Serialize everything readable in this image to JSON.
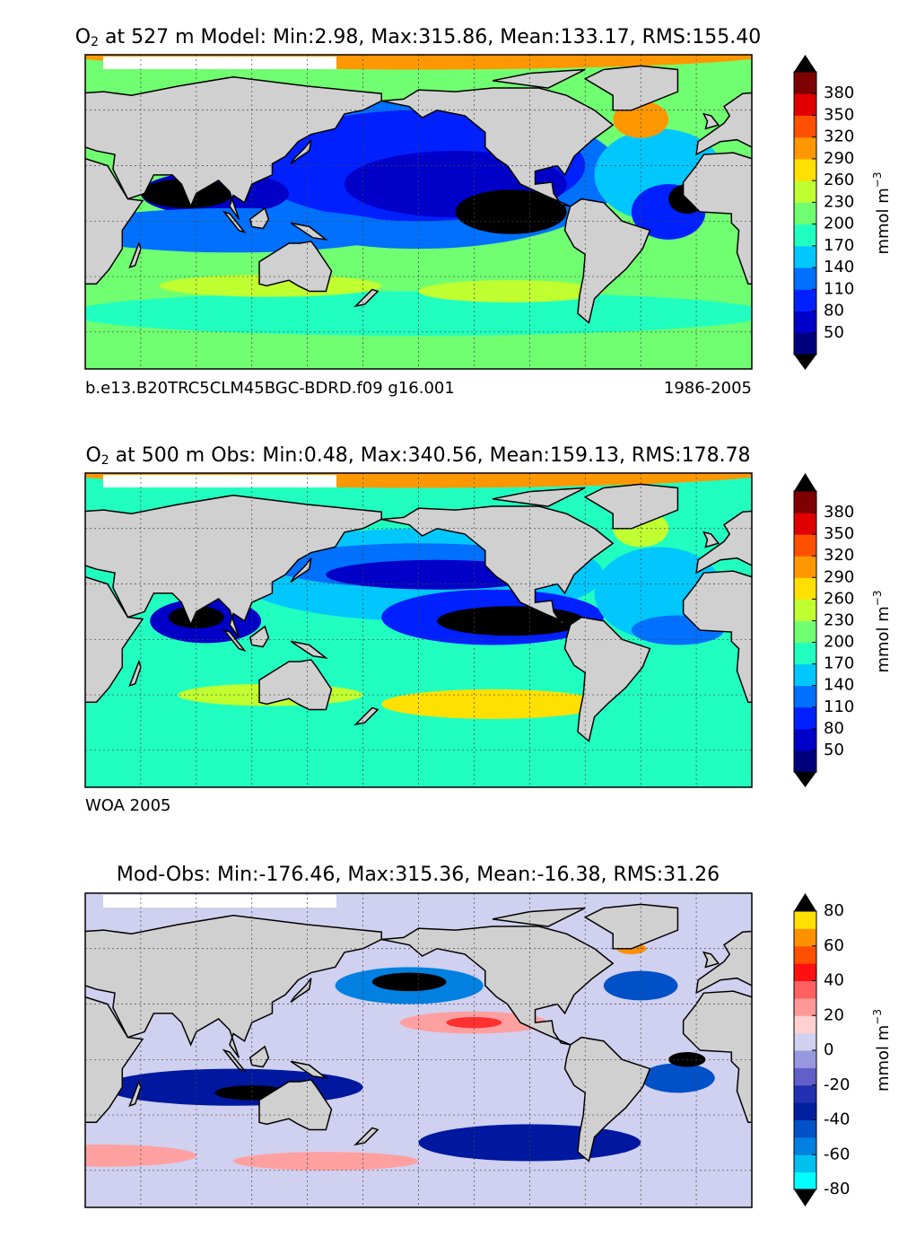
{
  "panels": [
    {
      "title": {
        "species": "O",
        "subscript": "2",
        "text": " at 527 m Model: Min:2.98, Max:315.86, Mean:133.17, RMS:155.40"
      },
      "footer_left": "b.e13.B20TRC5CLM45BGC-BDRD.f09 g16.001",
      "footer_right": "1986-2005",
      "colorbar": {
        "label": "mmol m",
        "label_exponent": "−3",
        "ticks": [
          50,
          80,
          110,
          140,
          170,
          200,
          230,
          260,
          290,
          320,
          350,
          380
        ],
        "colors": [
          "#00007f",
          "#0000c8",
          "#0020ff",
          "#0070ff",
          "#00c8ff",
          "#20ffc0",
          "#70ff70",
          "#c0ff30",
          "#ffe000",
          "#ff9800",
          "#ff5000",
          "#e00000",
          "#7f0000"
        ]
      }
    },
    {
      "title": {
        "species": "O",
        "subscript": "2",
        "text": " at 500 m Obs: Min:0.48, Max:340.56, Mean:159.13, RMS:178.78"
      },
      "footer_left": "WOA 2005",
      "colorbar": {
        "label": "mmol m",
        "label_exponent": "−3",
        "ticks": [
          50,
          80,
          110,
          140,
          170,
          200,
          230,
          260,
          290,
          320,
          350,
          380
        ],
        "colors": [
          "#00007f",
          "#0000c8",
          "#0020ff",
          "#0070ff",
          "#00c8ff",
          "#20ffc0",
          "#70ff70",
          "#c0ff30",
          "#ffe000",
          "#ff9800",
          "#ff5000",
          "#e00000",
          "#7f0000"
        ]
      }
    },
    {
      "title": {
        "text": "Mod-Obs: Min:-176.46, Max:315.36, Mean:-16.38, RMS:31.26"
      },
      "colorbar": {
        "label": "mmol m",
        "label_exponent": "−3",
        "ticks": [
          -80,
          -60,
          -40,
          -20,
          0,
          20,
          40,
          60,
          80
        ],
        "colors": [
          "#00ffff",
          "#00c0f0",
          "#0080e0",
          "#0050c8",
          "#0020a0",
          "#2030b0",
          "#6060c8",
          "#9898e0",
          "#d0d0f0",
          "#ffd0d0",
          "#ff9898",
          "#ff6060",
          "#ff1010",
          "#ff5000",
          "#ff9000",
          "#ffe000"
        ]
      }
    }
  ]
}
